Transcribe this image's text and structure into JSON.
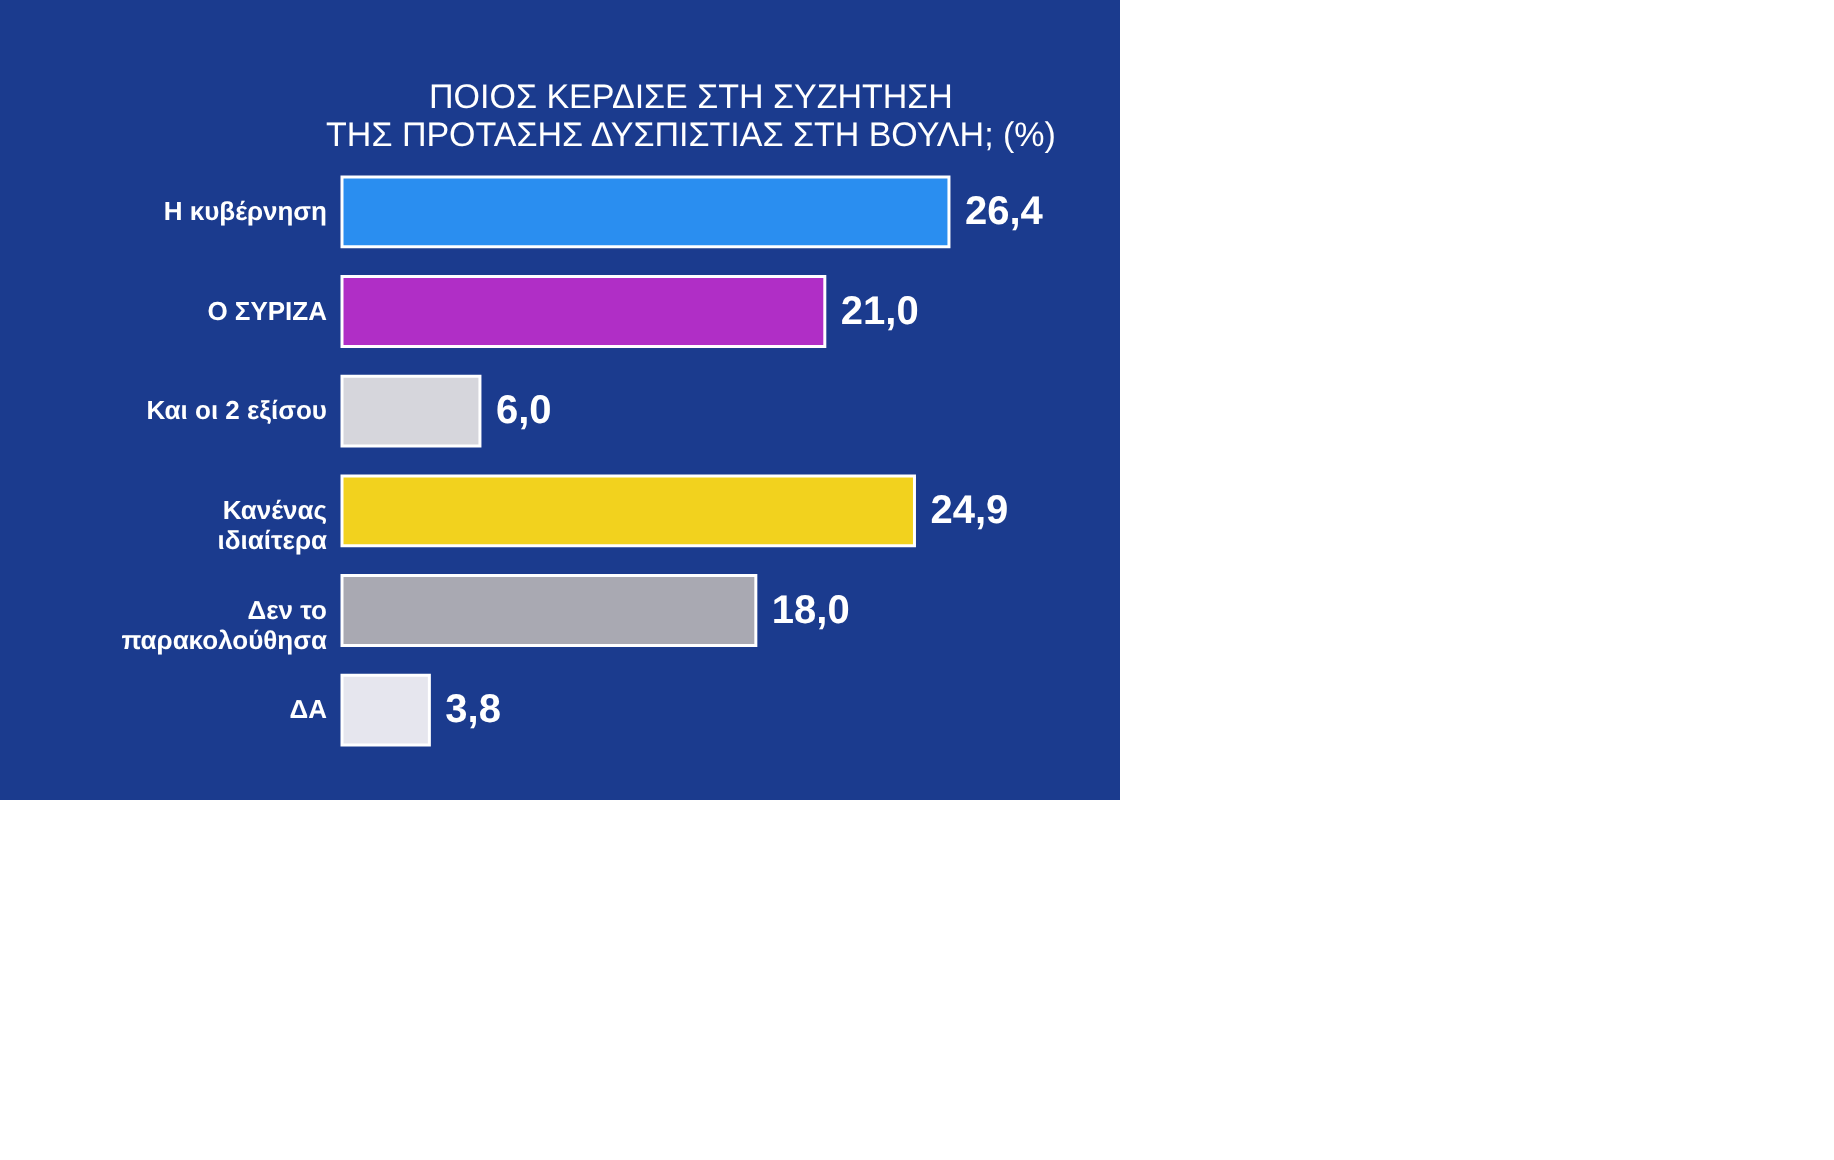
{
  "chart_data": {
    "type": "bar",
    "orientation": "horizontal",
    "title": "ΠΟΙΟΣ ΚΕΡΔΙΣΕ ΣΤΗ ΣΥΖΗΤΗΣΗ\nΤΗΣ ΠΡΟΤΑΣΗΣ ΔΥΣΠΙΣΤΙΑΣ ΣΤΗ ΒΟΥΛΗ; (%)",
    "categories": [
      "Η κυβέρνηση",
      "Ο ΣΥΡΙΖΑ",
      "Και οι 2 εξίσου",
      "Κανένας\nιδιαίτερα",
      "Δεν το\nπαρακολούθησα",
      "ΔΑ"
    ],
    "values": [
      26.4,
      21.0,
      6.0,
      24.9,
      18.0,
      3.8
    ],
    "value_labels": [
      "26,4",
      "21,0",
      "6,0",
      "24,9",
      "18,0",
      "3,8"
    ],
    "colors": [
      "#2a8ef0",
      "#b02ec6",
      "#d6d6dc",
      "#f2d21e",
      "#a9a9b2",
      "#e6e6ee"
    ]
  }
}
